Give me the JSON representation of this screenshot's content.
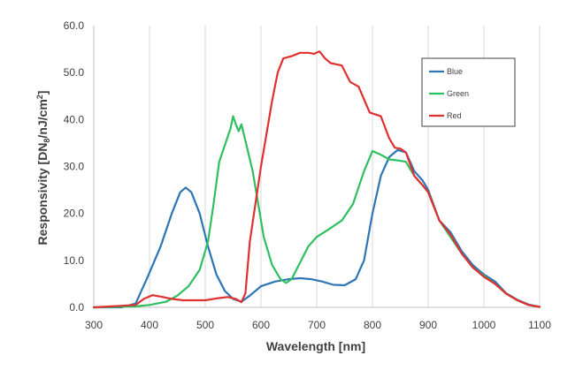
{
  "chart_data": {
    "type": "line",
    "xlabel": "Wavelength [nm]",
    "ylabel": "Responsivity [DN",
    "ylabel_sub": "8",
    "ylabel_tail": "/nJ/cm",
    "ylabel_sup": "2",
    "ylabel_end": "]",
    "xlim": [
      300,
      1100
    ],
    "ylim": [
      0,
      60
    ],
    "xticks": [
      "300",
      "400",
      "500",
      "600",
      "700",
      "800",
      "900",
      "1000",
      "1100"
    ],
    "yticks": [
      "0.0",
      "10.0",
      "20.0",
      "30.0",
      "40.0",
      "50.0",
      "60.0"
    ],
    "grid": "vertical",
    "legend_position": "top-right",
    "series": [
      {
        "name": "Blue",
        "color": "#2e75b6",
        "points": [
          [
            300,
            0
          ],
          [
            350,
            0
          ],
          [
            375,
            0.8
          ],
          [
            395,
            6
          ],
          [
            420,
            13
          ],
          [
            440,
            20
          ],
          [
            455,
            24.5
          ],
          [
            465,
            25.5
          ],
          [
            475,
            24.5
          ],
          [
            490,
            20
          ],
          [
            505,
            13
          ],
          [
            520,
            7
          ],
          [
            535,
            3.5
          ],
          [
            550,
            1.8
          ],
          [
            565,
            1.2
          ],
          [
            580,
            2.5
          ],
          [
            600,
            4.5
          ],
          [
            625,
            5.5
          ],
          [
            650,
            6
          ],
          [
            670,
            6.2
          ],
          [
            690,
            6
          ],
          [
            710,
            5.5
          ],
          [
            730,
            4.8
          ],
          [
            750,
            4.7
          ],
          [
            770,
            6
          ],
          [
            785,
            10
          ],
          [
            800,
            20
          ],
          [
            815,
            28
          ],
          [
            830,
            32
          ],
          [
            845,
            33.5
          ],
          [
            860,
            33
          ],
          [
            875,
            29
          ],
          [
            890,
            27
          ],
          [
            900,
            25
          ],
          [
            920,
            18.5
          ],
          [
            940,
            16
          ],
          [
            960,
            12
          ],
          [
            980,
            9
          ],
          [
            1000,
            7
          ],
          [
            1020,
            5.5
          ],
          [
            1040,
            3
          ],
          [
            1060,
            1.6
          ],
          [
            1080,
            0.6
          ],
          [
            1100,
            0.1
          ]
        ]
      },
      {
        "name": "Green",
        "color": "#2ebf5f",
        "points": [
          [
            300,
            0
          ],
          [
            375,
            0.2
          ],
          [
            400,
            0.5
          ],
          [
            430,
            1.2
          ],
          [
            450,
            2.5
          ],
          [
            470,
            4.5
          ],
          [
            490,
            8
          ],
          [
            505,
            14
          ],
          [
            515,
            22
          ],
          [
            525,
            31
          ],
          [
            535,
            34.5
          ],
          [
            545,
            38
          ],
          [
            550,
            40.7
          ],
          [
            555,
            39
          ],
          [
            560,
            37.5
          ],
          [
            565,
            39
          ],
          [
            575,
            34
          ],
          [
            585,
            29
          ],
          [
            595,
            22
          ],
          [
            605,
            15
          ],
          [
            620,
            9
          ],
          [
            635,
            6
          ],
          [
            645,
            5.2
          ],
          [
            655,
            6
          ],
          [
            670,
            9.5
          ],
          [
            685,
            13
          ],
          [
            700,
            15
          ],
          [
            720,
            16.5
          ],
          [
            745,
            18.5
          ],
          [
            765,
            22
          ],
          [
            785,
            29
          ],
          [
            800,
            33.3
          ],
          [
            815,
            32.5
          ],
          [
            830,
            31.5
          ],
          [
            845,
            31.3
          ],
          [
            860,
            31
          ],
          [
            875,
            28
          ],
          [
            890,
            26
          ],
          [
            900,
            24.5
          ],
          [
            920,
            18.5
          ],
          [
            940,
            15
          ],
          [
            960,
            11.5
          ],
          [
            980,
            8.5
          ],
          [
            1000,
            6.7
          ],
          [
            1020,
            5
          ],
          [
            1040,
            2.9
          ],
          [
            1060,
            1.5
          ],
          [
            1080,
            0.5
          ],
          [
            1100,
            0.1
          ]
        ]
      },
      {
        "name": "Red",
        "color": "#e03030",
        "points": [
          [
            300,
            0
          ],
          [
            375,
            0.5
          ],
          [
            390,
            1.8
          ],
          [
            405,
            2.6
          ],
          [
            420,
            2.3
          ],
          [
            440,
            1.8
          ],
          [
            460,
            1.5
          ],
          [
            480,
            1.5
          ],
          [
            500,
            1.5
          ],
          [
            520,
            1.9
          ],
          [
            540,
            2.2
          ],
          [
            555,
            1.8
          ],
          [
            565,
            1.1
          ],
          [
            572,
            3
          ],
          [
            580,
            14
          ],
          [
            590,
            22
          ],
          [
            600,
            30
          ],
          [
            610,
            37
          ],
          [
            620,
            44
          ],
          [
            630,
            50
          ],
          [
            640,
            53
          ],
          [
            655,
            53.5
          ],
          [
            670,
            54.2
          ],
          [
            685,
            54.2
          ],
          [
            695,
            54
          ],
          [
            705,
            54.5
          ],
          [
            715,
            53
          ],
          [
            725,
            52
          ],
          [
            745,
            51.5
          ],
          [
            760,
            48
          ],
          [
            775,
            47
          ],
          [
            795,
            41.5
          ],
          [
            815,
            40.7
          ],
          [
            830,
            36
          ],
          [
            840,
            34
          ],
          [
            850,
            33.8
          ],
          [
            860,
            33
          ],
          [
            875,
            28
          ],
          [
            890,
            26
          ],
          [
            900,
            24.5
          ],
          [
            920,
            18.5
          ],
          [
            940,
            15.5
          ],
          [
            960,
            11.5
          ],
          [
            980,
            8.5
          ],
          [
            1000,
            6.5
          ],
          [
            1020,
            5
          ],
          [
            1040,
            2.9
          ],
          [
            1060,
            1.5
          ],
          [
            1080,
            0.5
          ],
          [
            1100,
            0.1
          ]
        ]
      }
    ]
  }
}
